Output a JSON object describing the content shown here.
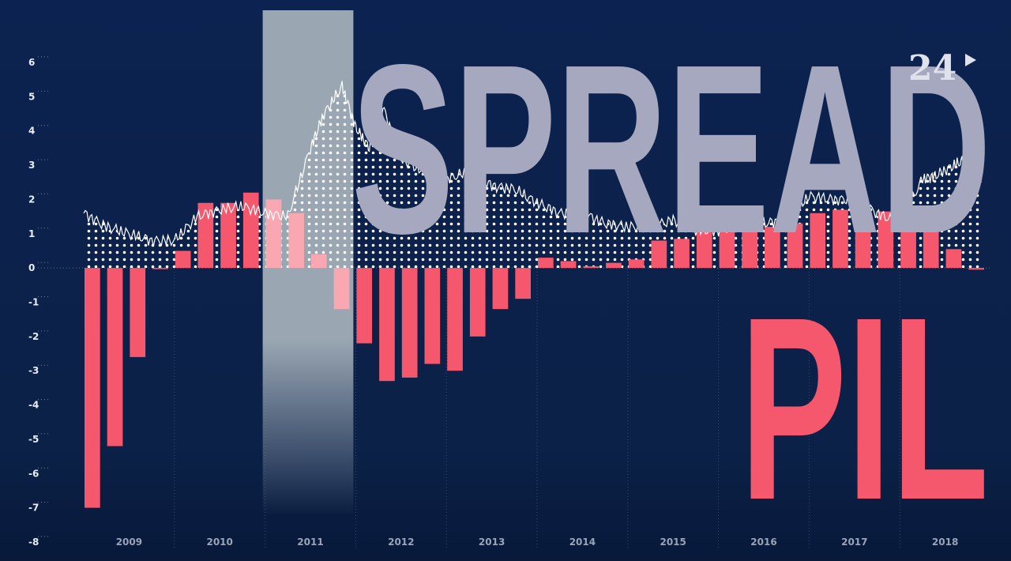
{
  "title_spread": "SPREAD",
  "title_pil": "PIL",
  "logo": {
    "text": "24",
    "icon": "play-triangle-icon"
  },
  "colors": {
    "background": "#0b2248",
    "bars": "#f5576c",
    "bars_highlight": "#f9a7b1",
    "spread_line": "#ffffff",
    "spread_text": "#a6a8bf",
    "highlight_band": "#9aa7b3"
  },
  "chart_data": {
    "type": "bar",
    "ylim": [
      -8,
      6
    ],
    "yticks": [
      "6",
      "5",
      "4",
      "3",
      "2",
      "1",
      "0",
      "-1",
      "-2",
      "-3",
      "-4",
      "-5",
      "-6",
      "-7",
      "-8"
    ],
    "xticks": [
      "2009",
      "2010",
      "2011",
      "2012",
      "2013",
      "2014",
      "2015",
      "2016",
      "2017",
      "2018"
    ],
    "xrange": [
      2009,
      2019
    ],
    "highlight_period": [
      "2011-Q1",
      "2011-Q4"
    ],
    "series": [
      {
        "type": "bar",
        "categories": [
          "2009-Q1",
          "2009-Q2",
          "2009-Q3",
          "2009-Q4",
          "2010-Q1",
          "2010-Q2",
          "2010-Q3",
          "2010-Q4",
          "2011-Q1",
          "2011-Q2",
          "2011-Q3",
          "2011-Q4",
          "2012-Q1",
          "2012-Q2",
          "2012-Q3",
          "2012-Q4",
          "2013-Q1",
          "2013-Q2",
          "2013-Q3",
          "2013-Q4",
          "2014-Q1",
          "2014-Q2",
          "2014-Q3",
          "2014-Q4",
          "2015-Q1",
          "2015-Q2",
          "2015-Q3",
          "2015-Q4",
          "2016-Q1",
          "2016-Q2",
          "2016-Q3",
          "2016-Q4",
          "2017-Q1",
          "2017-Q2",
          "2017-Q3",
          "2017-Q4",
          "2018-Q1",
          "2018-Q2",
          "2018-Q3",
          "2018-Q4"
        ],
        "values": [
          -7.0,
          -5.2,
          -2.6,
          0.0,
          0.5,
          1.9,
          1.9,
          2.2,
          2.0,
          1.6,
          0.4,
          -1.2,
          -2.2,
          -3.3,
          -3.2,
          -2.8,
          -3.0,
          -2.0,
          -1.2,
          -0.9,
          0.3,
          0.2,
          0.05,
          0.15,
          0.25,
          0.8,
          0.85,
          1.25,
          1.3,
          1.15,
          1.2,
          1.3,
          1.6,
          1.7,
          1.7,
          1.65,
          1.35,
          1.05,
          0.55,
          -0.05
        ]
      },
      {
        "type": "line",
        "x": [
          2009.0,
          2009.25,
          2009.5,
          2009.75,
          2010.0,
          2010.25,
          2010.5,
          2010.75,
          2011.0,
          2011.25,
          2011.5,
          2011.65,
          2011.85,
          2012.0,
          2012.15,
          2012.3,
          2012.5,
          2012.75,
          2013.0,
          2013.25,
          2013.5,
          2013.75,
          2014.0,
          2014.25,
          2014.5,
          2014.75,
          2015.0,
          2015.25,
          2015.5,
          2015.75,
          2016.0,
          2016.25,
          2016.5,
          2016.75,
          2017.0,
          2017.25,
          2017.5,
          2017.75,
          2018.0,
          2018.25,
          2018.4,
          2018.6,
          2018.75,
          2018.9
        ],
        "values": [
          1.6,
          1.2,
          1.0,
          0.8,
          0.8,
          1.5,
          1.7,
          1.8,
          1.6,
          1.5,
          3.5,
          4.5,
          5.3,
          4.1,
          3.5,
          4.7,
          3.2,
          2.8,
          2.6,
          2.8,
          2.4,
          2.3,
          1.9,
          1.6,
          1.6,
          1.3,
          1.2,
          1.2,
          1.4,
          1.1,
          1.1,
          1.3,
          1.3,
          1.4,
          2.1,
          2.0,
          2.0,
          1.6,
          1.3,
          2.6,
          2.7,
          3.0,
          3.2,
          2.5
        ]
      }
    ]
  }
}
